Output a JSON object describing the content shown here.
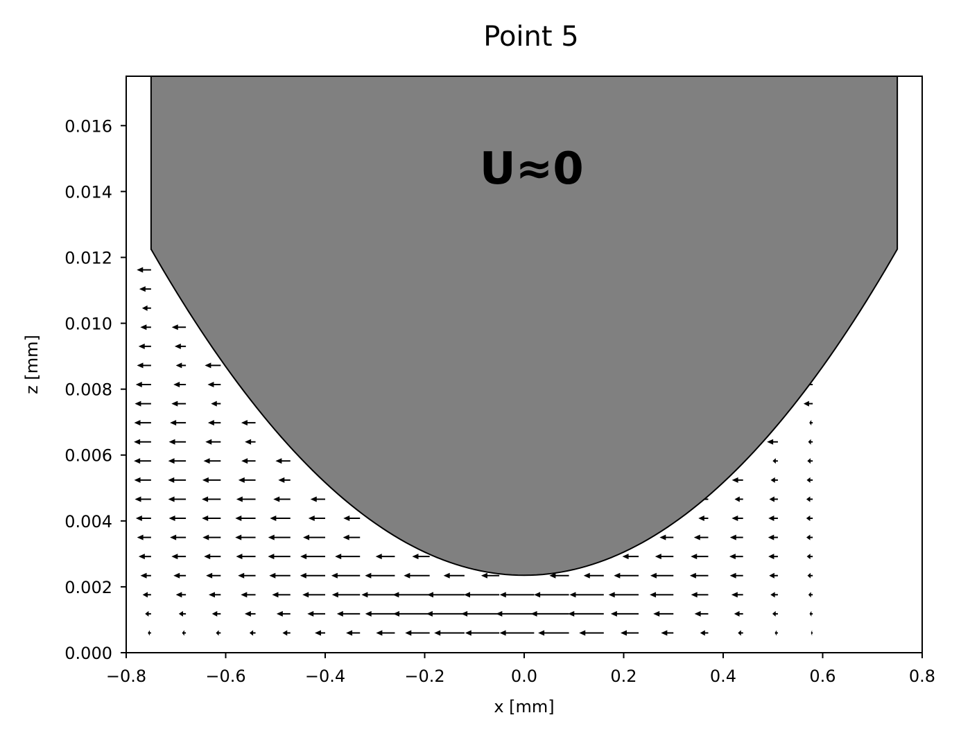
{
  "chart_data": {
    "type": "quiver",
    "title": "Point 5",
    "xlabel": "x [mm]",
    "ylabel": "z [mm]",
    "xlim": [
      -0.8,
      0.8
    ],
    "ylim": [
      0.0,
      0.0175
    ],
    "x_ticks": [
      -0.8,
      -0.6,
      -0.4,
      -0.2,
      0.0,
      0.2,
      0.4,
      0.6,
      0.8
    ],
    "x_tick_labels": [
      "−0.8",
      "−0.6",
      "−0.4",
      "−0.2",
      "0.0",
      "0.2",
      "0.4",
      "0.6",
      "0.8"
    ],
    "y_ticks": [
      0.0,
      0.002,
      0.004,
      0.006,
      0.008,
      0.01,
      0.012,
      0.014,
      0.016
    ],
    "y_tick_labels": [
      "0.000",
      "0.002",
      "0.004",
      "0.006",
      "0.008",
      "0.010",
      "0.012",
      "0.014",
      "0.016"
    ],
    "annotation": {
      "text": "U≈0",
      "x": 0.015,
      "z": 0.0147
    },
    "body": {
      "fill": "#808080",
      "edge": "#000000",
      "x_half_width": 0.75,
      "tip_z": 0.00235,
      "edge_z": 0.01225,
      "top_z": 0.0175
    },
    "grid": false,
    "arrow_color": "#000000"
  }
}
